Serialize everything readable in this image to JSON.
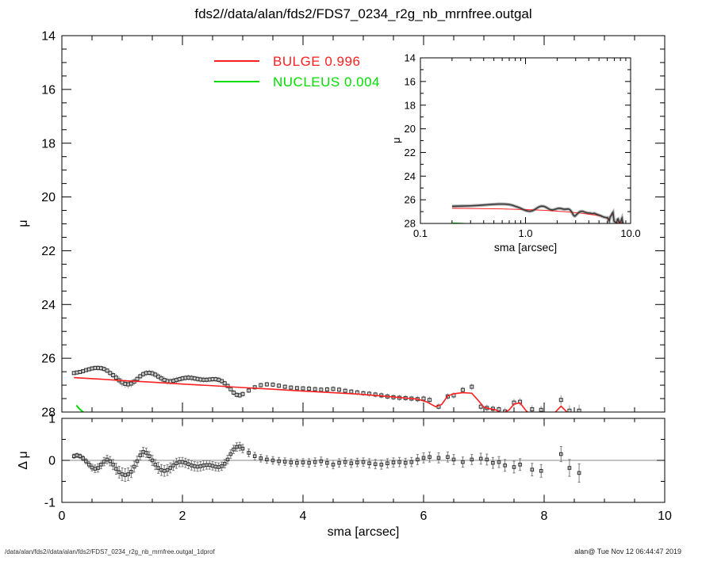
{
  "title": "fds2//data/alan/fds2/FDS7_0234_r2g_nb_mrnfree.outgal",
  "legend": {
    "items": [
      {
        "label": "BULGE  0.996",
        "color": "#ff1f1f"
      },
      {
        "label": "NUCLEUS  0.004",
        "color": "#00dd00"
      }
    ]
  },
  "footer": {
    "left": "/data/alan/fds2//data/alan/fds2/FDS7_0234_r2g_nb_mrnfree.outgal_1dprof",
    "right": "alan@  Tue Nov 12 06:44:47 2019"
  },
  "chart_data": [
    {
      "id": "main",
      "type": "scatter",
      "xlabel": "sma [arcsec]",
      "ylabel": "μ",
      "xlim": [
        0,
        10
      ],
      "ylim": [
        28,
        14
      ],
      "y_axis_inverted": true,
      "xticks": [
        0,
        2,
        4,
        6,
        8,
        10
      ],
      "yticks": [
        14,
        16,
        18,
        20,
        22,
        24,
        26,
        28
      ],
      "xtick_labels": [
        "0",
        "2",
        "4",
        "6",
        "8",
        "10"
      ],
      "ytick_labels": [
        "14",
        "16",
        "18",
        "20",
        "22",
        "24",
        "26",
        "28"
      ],
      "grid": false,
      "legend_position": "top-left-inside",
      "columns": [
        "sma_arcsec",
        "mu",
        "delta_mu",
        "err"
      ],
      "points": [
        [
          0.2,
          26.55,
          0.1,
          0.05
        ],
        [
          0.25,
          26.53,
          0.12,
          0.05
        ],
        [
          0.3,
          26.51,
          0.1,
          0.05
        ],
        [
          0.35,
          26.48,
          0.05,
          0.06
        ],
        [
          0.4,
          26.44,
          -0.02,
          0.06
        ],
        [
          0.45,
          26.41,
          -0.1,
          0.07
        ],
        [
          0.5,
          26.38,
          -0.17,
          0.08
        ],
        [
          0.55,
          26.36,
          -0.2,
          0.09
        ],
        [
          0.6,
          26.36,
          -0.18,
          0.1
        ],
        [
          0.65,
          26.37,
          -0.1,
          0.1
        ],
        [
          0.7,
          26.4,
          -0.03,
          0.1
        ],
        [
          0.75,
          26.46,
          0.02,
          0.1
        ],
        [
          0.8,
          26.55,
          -0.02,
          0.11
        ],
        [
          0.85,
          26.63,
          -0.1,
          0.12
        ],
        [
          0.9,
          26.72,
          -0.2,
          0.13
        ],
        [
          0.95,
          26.82,
          -0.28,
          0.14
        ],
        [
          1.0,
          26.9,
          -0.33,
          0.15
        ],
        [
          1.05,
          26.95,
          -0.35,
          0.15
        ],
        [
          1.1,
          26.97,
          -0.33,
          0.15
        ],
        [
          1.15,
          26.94,
          -0.27,
          0.14
        ],
        [
          1.2,
          26.87,
          -0.15,
          0.13
        ],
        [
          1.25,
          26.77,
          -0.02,
          0.12
        ],
        [
          1.3,
          26.67,
          0.12,
          0.11
        ],
        [
          1.35,
          26.59,
          0.2,
          0.11
        ],
        [
          1.4,
          26.55,
          0.18,
          0.11
        ],
        [
          1.45,
          26.54,
          0.1,
          0.11
        ],
        [
          1.5,
          26.56,
          0.0,
          0.12
        ],
        [
          1.55,
          26.61,
          -0.1,
          0.12
        ],
        [
          1.6,
          26.68,
          -0.18,
          0.13
        ],
        [
          1.65,
          26.75,
          -0.23,
          0.13
        ],
        [
          1.7,
          26.81,
          -0.25,
          0.13
        ],
        [
          1.75,
          26.85,
          -0.23,
          0.13
        ],
        [
          1.8,
          26.86,
          -0.18,
          0.12
        ],
        [
          1.85,
          26.84,
          -0.12,
          0.12
        ],
        [
          1.9,
          26.81,
          -0.07,
          0.12
        ],
        [
          1.95,
          26.78,
          -0.04,
          0.11
        ],
        [
          2.0,
          26.75,
          -0.04,
          0.11
        ],
        [
          2.05,
          26.73,
          -0.06,
          0.11
        ],
        [
          2.1,
          26.72,
          -0.09,
          0.11
        ],
        [
          2.15,
          26.73,
          -0.12,
          0.11
        ],
        [
          2.2,
          26.75,
          -0.14,
          0.11
        ],
        [
          2.25,
          26.77,
          -0.15,
          0.11
        ],
        [
          2.3,
          26.79,
          -0.14,
          0.11
        ],
        [
          2.35,
          26.8,
          -0.12,
          0.11
        ],
        [
          2.4,
          26.8,
          -0.11,
          0.1
        ],
        [
          2.45,
          26.79,
          -0.11,
          0.1
        ],
        [
          2.5,
          26.78,
          -0.13,
          0.1
        ],
        [
          2.55,
          26.78,
          -0.15,
          0.1
        ],
        [
          2.6,
          26.8,
          -0.16,
          0.1
        ],
        [
          2.65,
          26.85,
          -0.14,
          0.1
        ],
        [
          2.7,
          26.93,
          -0.08,
          0.1
        ],
        [
          2.75,
          27.03,
          0.02,
          0.1
        ],
        [
          2.8,
          27.15,
          0.15,
          0.1
        ],
        [
          2.85,
          27.28,
          0.26,
          0.1
        ],
        [
          2.9,
          27.36,
          0.32,
          0.1
        ],
        [
          2.95,
          27.38,
          0.33,
          0.1
        ],
        [
          3.0,
          27.33,
          0.28,
          0.1
        ],
        [
          3.1,
          27.2,
          0.18,
          0.09
        ],
        [
          3.2,
          27.08,
          0.1,
          0.09
        ],
        [
          3.3,
          27.0,
          0.05,
          0.09
        ],
        [
          3.4,
          26.97,
          0.02,
          0.09
        ],
        [
          3.5,
          26.98,
          0.0,
          0.09
        ],
        [
          3.6,
          27.02,
          -0.02,
          0.09
        ],
        [
          3.7,
          27.06,
          -0.03,
          0.09
        ],
        [
          3.8,
          27.09,
          -0.05,
          0.09
        ],
        [
          3.9,
          27.11,
          -0.06,
          0.09
        ],
        [
          4.0,
          27.12,
          -0.05,
          0.09
        ],
        [
          4.1,
          27.13,
          -0.06,
          0.1
        ],
        [
          4.2,
          27.15,
          -0.04,
          0.1
        ],
        [
          4.3,
          27.17,
          -0.02,
          0.1
        ],
        [
          4.4,
          27.16,
          -0.06,
          0.1
        ],
        [
          4.5,
          27.14,
          -0.1,
          0.1
        ],
        [
          4.6,
          27.17,
          -0.06,
          0.1
        ],
        [
          4.7,
          27.21,
          -0.04,
          0.1
        ],
        [
          4.8,
          27.24,
          -0.07,
          0.1
        ],
        [
          4.9,
          27.27,
          -0.05,
          0.1
        ],
        [
          5.0,
          27.3,
          -0.04,
          0.1
        ],
        [
          5.1,
          27.32,
          -0.07,
          0.11
        ],
        [
          5.2,
          27.35,
          -0.09,
          0.11
        ],
        [
          5.3,
          27.38,
          -0.1,
          0.11
        ],
        [
          5.4,
          27.42,
          -0.07,
          0.11
        ],
        [
          5.5,
          27.45,
          -0.05,
          0.11
        ],
        [
          5.6,
          27.47,
          -0.04,
          0.11
        ],
        [
          5.7,
          27.48,
          -0.06,
          0.11
        ],
        [
          5.8,
          27.5,
          -0.04,
          0.11
        ],
        [
          5.9,
          27.52,
          0.02,
          0.12
        ],
        [
          6.0,
          27.5,
          0.06,
          0.12
        ],
        [
          6.1,
          27.55,
          0.08,
          0.12
        ],
        [
          6.25,
          27.8,
          0.06,
          0.12
        ],
        [
          6.4,
          27.42,
          0.08,
          0.12
        ],
        [
          6.5,
          27.38,
          0.02,
          0.12
        ],
        [
          6.65,
          27.18,
          -0.04,
          0.12
        ],
        [
          6.8,
          27.06,
          0.02,
          0.12
        ],
        [
          6.95,
          27.8,
          0.04,
          0.13
        ],
        [
          7.05,
          27.85,
          0.02,
          0.13
        ],
        [
          7.15,
          27.88,
          -0.06,
          0.13
        ],
        [
          7.25,
          27.9,
          -0.04,
          0.13
        ],
        [
          7.35,
          27.98,
          -0.12,
          0.14
        ],
        [
          7.5,
          27.65,
          -0.16,
          0.14
        ],
        [
          7.6,
          27.62,
          -0.1,
          0.14
        ],
        [
          7.8,
          27.9,
          -0.22,
          0.15
        ],
        [
          7.95,
          27.92,
          -0.25,
          0.15
        ],
        [
          8.28,
          27.55,
          0.15,
          0.18
        ],
        [
          8.42,
          27.95,
          -0.18,
          0.2
        ],
        [
          8.58,
          27.95,
          -0.3,
          0.22
        ]
      ],
      "bulge_line": [
        [
          0.2,
          26.72
        ],
        [
          0.6,
          26.77
        ],
        [
          1.0,
          26.83
        ],
        [
          1.5,
          26.89
        ],
        [
          2.0,
          26.96
        ],
        [
          2.5,
          27.02
        ],
        [
          3.0,
          27.09
        ],
        [
          3.5,
          27.15
        ],
        [
          4.0,
          27.22
        ],
        [
          4.5,
          27.28
        ],
        [
          4.9,
          27.33
        ],
        [
          5.3,
          27.4
        ],
        [
          5.6,
          27.46
        ],
        [
          5.9,
          27.52
        ],
        [
          6.05,
          27.62
        ],
        [
          6.2,
          27.8
        ],
        [
          6.3,
          27.72
        ],
        [
          6.4,
          27.4
        ],
        [
          6.5,
          27.32
        ],
        [
          6.65,
          27.28
        ],
        [
          6.8,
          27.3
        ],
        [
          6.9,
          27.55
        ],
        [
          7.0,
          27.82
        ],
        [
          7.1,
          27.88
        ],
        [
          7.2,
          27.92
        ],
        [
          7.3,
          28.06
        ],
        [
          7.42,
          27.92
        ],
        [
          7.5,
          27.7
        ],
        [
          7.6,
          27.66
        ],
        [
          7.7,
          27.95
        ],
        [
          7.8,
          28.16
        ],
        [
          8.12,
          28.16
        ],
        [
          8.28,
          27.78
        ],
        [
          8.45,
          28.16
        ],
        [
          8.6,
          28.2
        ]
      ],
      "nucleus_line": [
        [
          0.24,
          27.75
        ],
        [
          0.3,
          27.9
        ],
        [
          0.37,
          28.03
        ],
        [
          0.44,
          28.16
        ]
      ],
      "colors": {
        "bulge": "#ff1f1f",
        "nucleus": "#00dd00",
        "marker": "#2b2b2b",
        "errorbar": "#9c9c9c",
        "frame": "#000000"
      }
    },
    {
      "id": "inset",
      "type": "line",
      "xscale": "log",
      "xlabel": "sma [arcsec]",
      "ylabel": "μ",
      "xlim": [
        0.1,
        10
      ],
      "ylim": [
        28,
        14
      ],
      "xticks": [
        0.1,
        1,
        10
      ],
      "xtick_labels": [
        "0.1",
        "1.0",
        "10.0"
      ],
      "yticks": [
        14,
        16,
        18,
        20,
        22,
        24,
        26,
        28
      ],
      "ytick_labels": [
        "14",
        "16",
        "18",
        "20",
        "22",
        "24",
        "26",
        "28"
      ],
      "source_series": "main.points",
      "nucleus_line": [
        [
          0.2,
          27.97
        ],
        [
          0.25,
          28.0
        ],
        [
          0.3,
          28.04
        ],
        [
          0.34,
          28.1
        ]
      ]
    },
    {
      "id": "residual",
      "type": "scatter",
      "xlabel": "sma [arcsec]",
      "ylabel": "Δ μ",
      "xlim": [
        0,
        10
      ],
      "ylim": [
        -1,
        1
      ],
      "xticks": [
        0,
        2,
        4,
        6,
        8,
        10
      ],
      "xtick_labels": [
        "0",
        "2",
        "4",
        "6",
        "8",
        "10"
      ],
      "yticks": [
        1,
        0,
        -1
      ],
      "ytick_labels": [
        "1",
        "0",
        "-1"
      ],
      "zero_line": 0,
      "source_series": "main.points"
    }
  ]
}
